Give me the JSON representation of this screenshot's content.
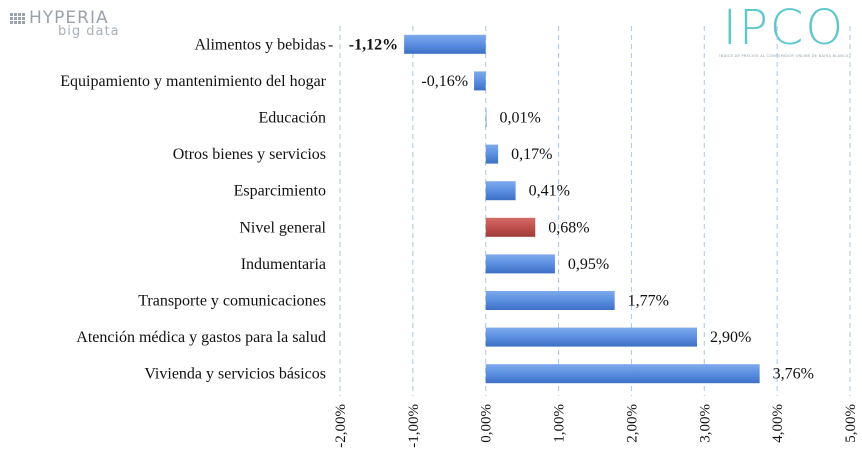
{
  "brand": {
    "name": "HYPERIA",
    "sub": "big data"
  },
  "logo": {
    "word": "IPCO",
    "tagline": "ÍNDICE DE PRECIOS AL CONSUMIDOR ONLINE DE BAHÍA BLANCA"
  },
  "colors": {
    "bar": "#5b8fe0",
    "highlight": "#c0504d",
    "grid": "#a9c6e8"
  },
  "chart_data": {
    "type": "bar",
    "orientation": "horizontal",
    "categories": [
      "Alimentos y bebidas",
      "Equipamiento y mantenimiento del hogar",
      "Educación",
      "Otros bienes y servicios",
      "Esparcimiento",
      "Nivel general",
      "Indumentaria",
      "Transporte y comunicaciones",
      "Atención médica y gastos para la salud",
      "Vivienda y servicios básicos"
    ],
    "values": [
      -1.12,
      -0.16,
      0.01,
      0.17,
      0.41,
      0.68,
      0.95,
      1.77,
      2.9,
      3.76
    ],
    "value_labels": [
      "-1,12%",
      "-0,16%",
      "0,01%",
      "0,17%",
      "0,41%",
      "0,68%",
      "0,95%",
      "1,77%",
      "2,90%",
      "3,76%"
    ],
    "highlight": "Nivel general",
    "xlim": [
      -2,
      5
    ],
    "xticks": [
      -2,
      -1,
      0,
      1,
      2,
      3,
      4,
      5
    ],
    "xtick_labels": [
      "-2,00%",
      "-1,00%",
      "0,00%",
      "1,00%",
      "2,00%",
      "3,00%",
      "4,00%",
      "5,00%"
    ],
    "grid": "vertical dashed",
    "legend": "none"
  }
}
